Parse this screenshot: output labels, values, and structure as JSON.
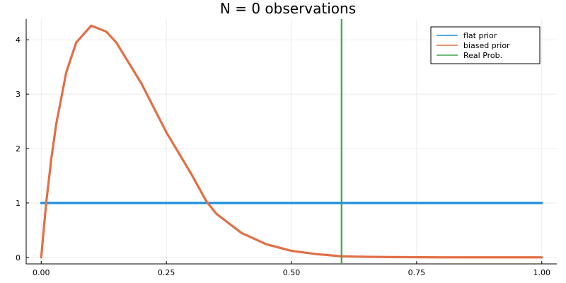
{
  "chart_data": {
    "type": "line",
    "title": "N = 0 observations",
    "xlabel": "",
    "ylabel": "",
    "xlim": [
      -0.03,
      1.03
    ],
    "ylim": [
      -0.12,
      4.38
    ],
    "x_ticks": [
      0.0,
      0.25,
      0.5,
      0.75,
      1.0
    ],
    "x_tick_labels": [
      "0.00",
      "0.25",
      "0.50",
      "0.75",
      "1.00"
    ],
    "y_ticks": [
      0,
      1,
      2,
      3,
      4
    ],
    "y_tick_labels": [
      "0",
      "1",
      "2",
      "3",
      "4"
    ],
    "grid": true,
    "legend_position": "top-right",
    "series": [
      {
        "name": "flat prior",
        "color": "#1f8fe0",
        "x": [
          0.0,
          1.0
        ],
        "y": [
          1.0,
          1.0
        ]
      },
      {
        "name": "biased prior",
        "color": "#e26f46",
        "x": [
          0.0,
          0.01,
          0.02,
          0.03,
          0.05,
          0.07,
          0.1,
          0.13,
          0.15,
          0.2,
          0.25,
          0.3,
          0.33,
          0.35,
          0.4,
          0.45,
          0.5,
          0.55,
          0.6,
          0.65,
          0.7,
          0.8,
          0.9,
          1.0
        ],
        "y": [
          0.0,
          1.0,
          1.8,
          2.45,
          3.4,
          3.95,
          4.26,
          4.15,
          3.95,
          3.2,
          2.3,
          1.53,
          1.03,
          0.8,
          0.45,
          0.24,
          0.12,
          0.06,
          0.02,
          0.01,
          0.005,
          0.0,
          0.0,
          0.0
        ]
      }
    ],
    "vline": {
      "name": "Real Prob.",
      "color": "#3da44d",
      "x": 0.6
    }
  }
}
